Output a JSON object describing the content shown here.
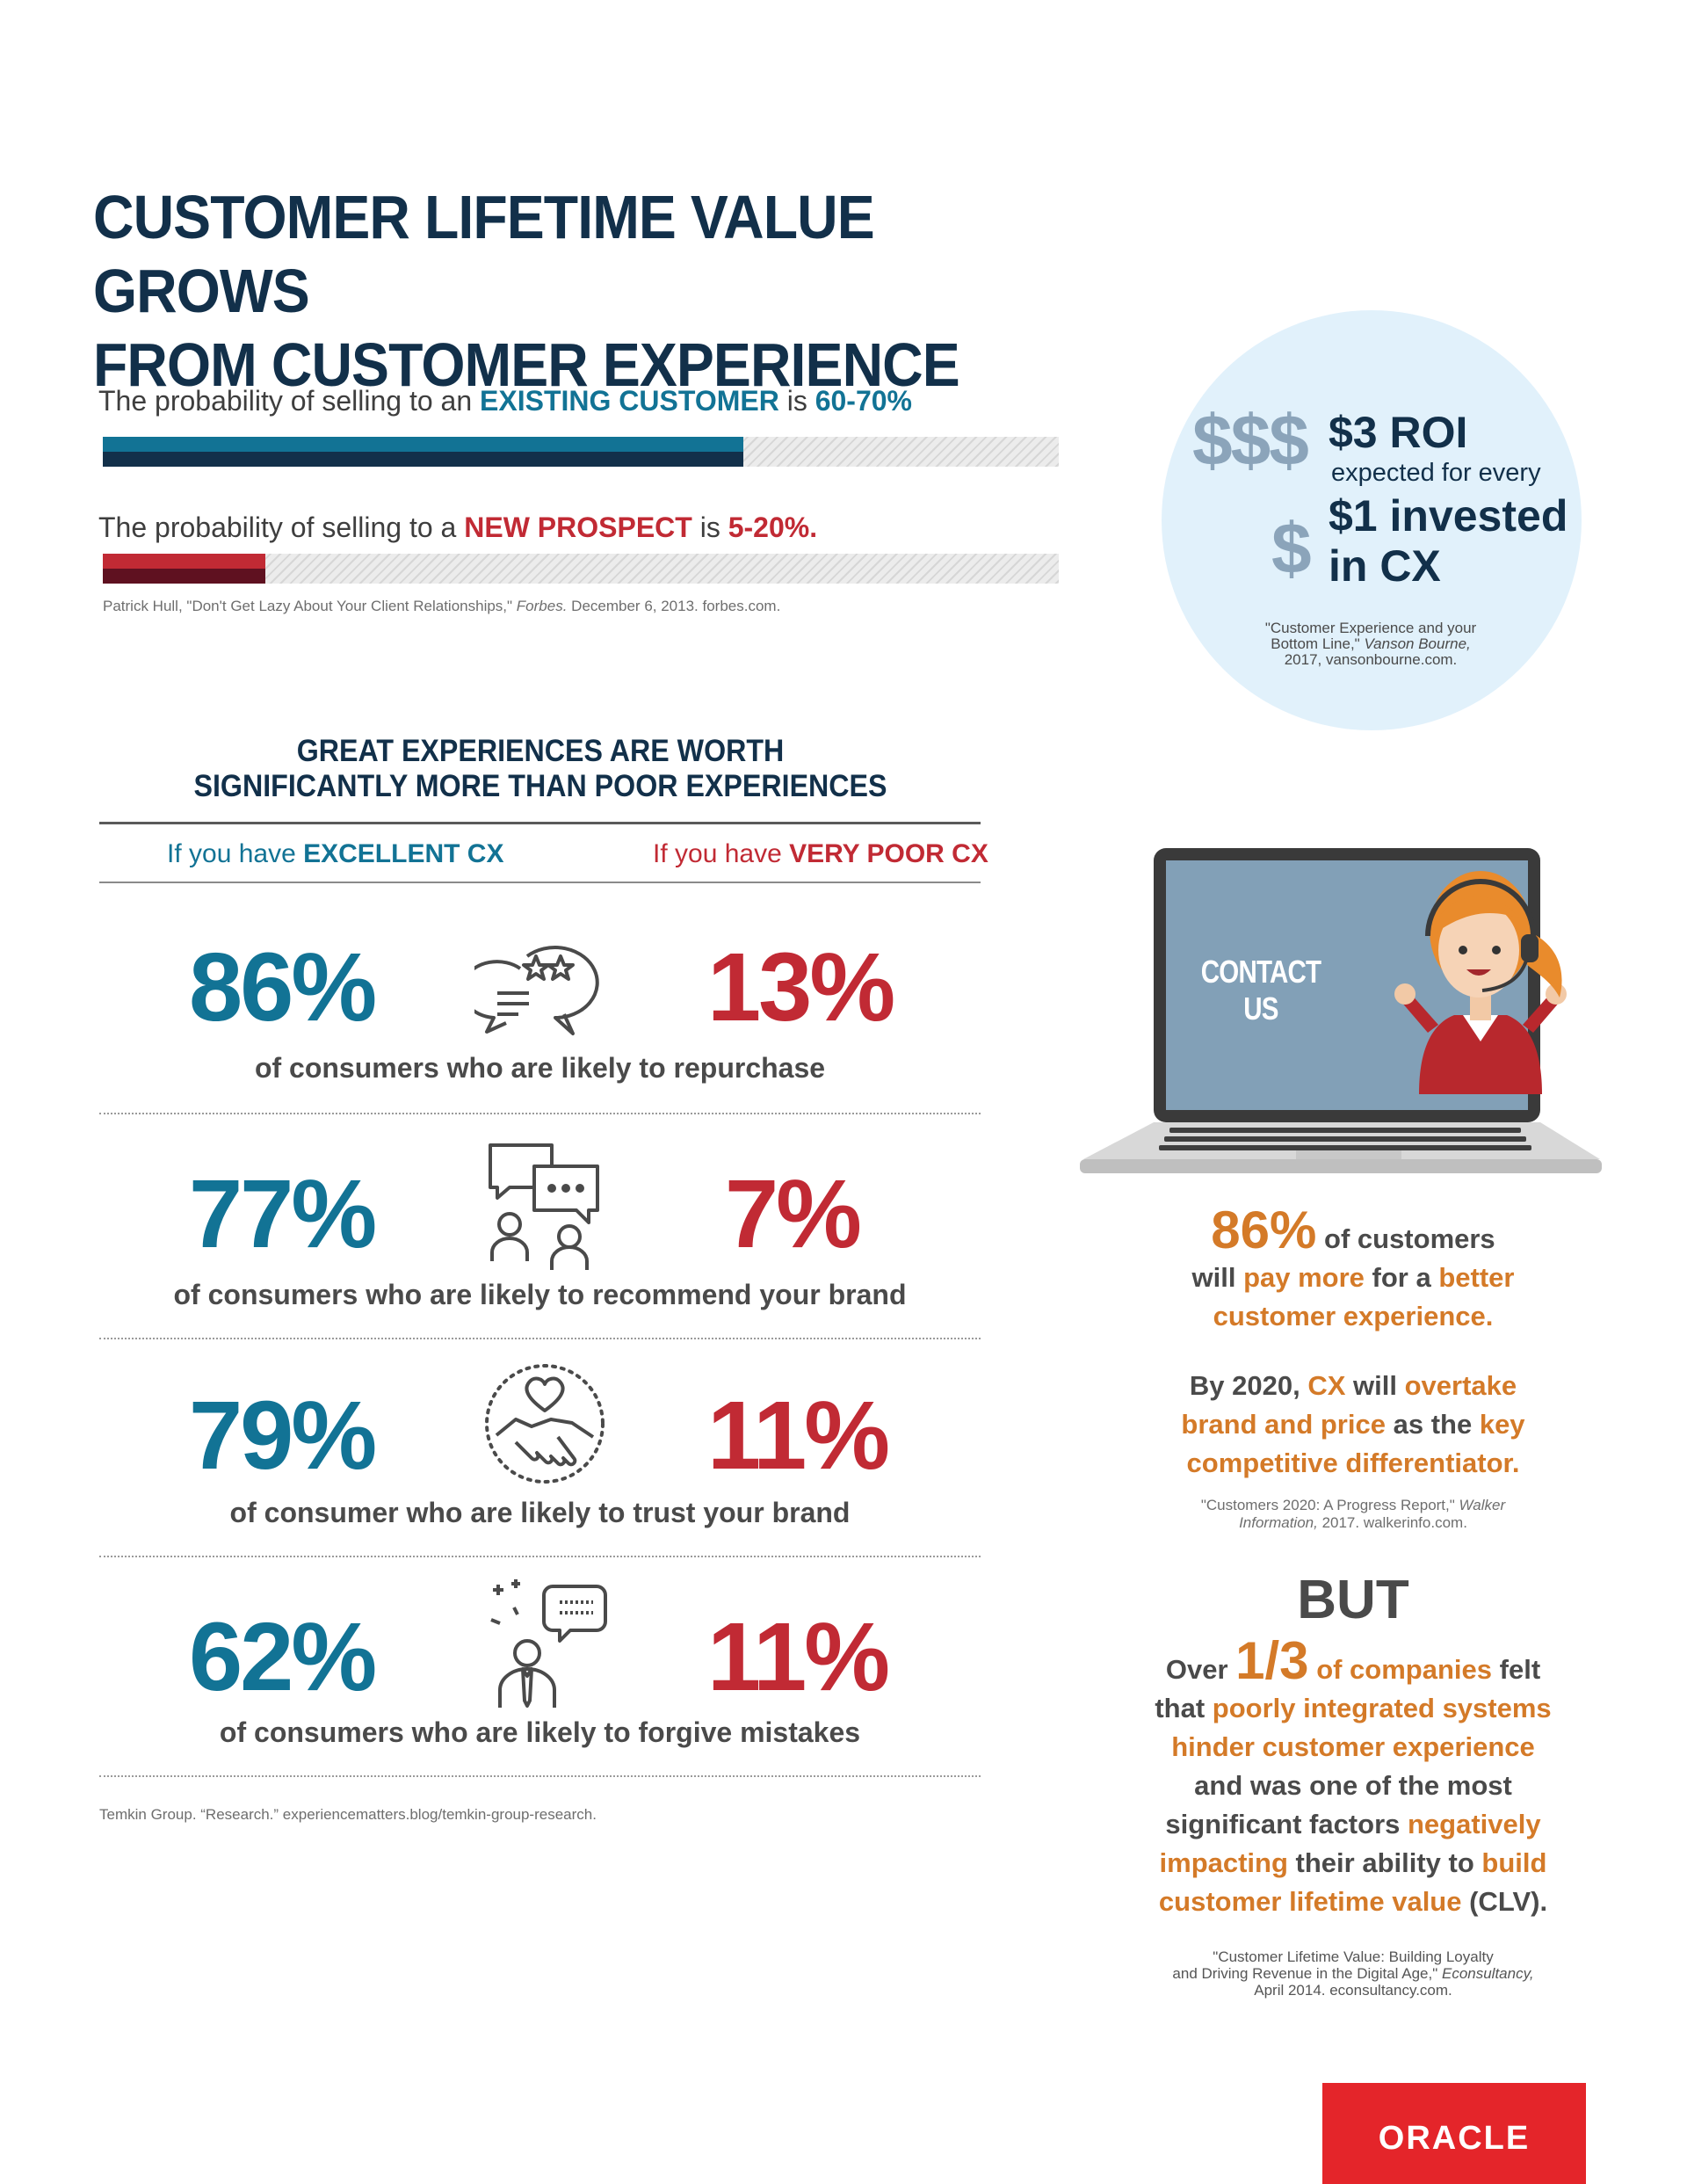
{
  "title": {
    "line1": "CUSTOMER LIFETIME VALUE GROWS",
    "line2": "FROM CUSTOMER EXPERIENCE"
  },
  "probability": {
    "existing": {
      "prefix": "The probability of selling to an",
      "highlight": "EXISTING CUSTOMER",
      "mid": "is",
      "value": "60-70%",
      "bar_fill_fraction": 0.67
    },
    "new": {
      "prefix": "The probability of selling to a",
      "highlight": "NEW PROSPECT",
      "mid": "is",
      "value": "5-20%.",
      "bar_fill_fraction": 0.17
    },
    "citation": {
      "text": "Patrick Hull, \"Don't Get Lazy About Your Client Relationships,\"",
      "italic": "Forbes.",
      "rest": "December 6, 2013. forbes.com."
    }
  },
  "roi": {
    "triple_dollar": "$$$",
    "single_dollar": "$",
    "line1": "$3 ROI",
    "line2": "expected for every",
    "line3": "$1 invested",
    "line4": "in CX",
    "citation_line1": "\"Customer Experience and your",
    "citation_line2a": "Bottom Line,\"",
    "citation_line2b": "Vanson Bourne,",
    "citation_line3": "2017, vansonbourne.com."
  },
  "section": {
    "title_line1": "GREAT EXPERIENCES ARE WORTH",
    "title_line2": "SIGNIFICANTLY MORE THAN POOR EXPERIENCES",
    "excellent_prefix": "If you have",
    "excellent_label": "EXCELLENT CX",
    "poor_prefix": "If you have",
    "poor_label": "VERY POOR CX"
  },
  "stats": [
    {
      "excellent": "86%",
      "poor": "13%",
      "label": "of consumers who are likely to repurchase",
      "icon": "chat-stars-icon"
    },
    {
      "excellent": "77%",
      "poor": "7%",
      "label": "of consumers who are likely to recommend your brand",
      "icon": "conversation-icon"
    },
    {
      "excellent": "79%",
      "poor": "11%",
      "label": "of consumer who are likely to trust your brand",
      "icon": "handshake-heart-icon"
    },
    {
      "excellent": "62%",
      "poor": "11%",
      "label": "of consumers who are likely to forgive mistakes",
      "icon": "person-speech-icon"
    }
  ],
  "stats_citation": "Temkin Group. “Research.” experiencematters.blog/temkin-group-research.",
  "laptop": {
    "screen_button": "CONTACT US"
  },
  "right_column": {
    "stat_value": "86%",
    "stat_a": "of customers",
    "stat_b": "will",
    "stat_c": "pay more",
    "stat_d": "for a",
    "stat_e": "better",
    "stat_f": "customer experience.",
    "p2_a": "By 2020,",
    "p2_b": "CX",
    "p2_c": "will",
    "p2_d": "overtake",
    "p2_e": "brand and price",
    "p2_f": "as the",
    "p2_g": "key",
    "p2_h": "competitive differentiator.",
    "cite2_a": "\"Customers 2020: A Progress Report,\"",
    "cite2_b": "Walker",
    "cite2_c": "Information,",
    "cite2_d": "2017. walkerinfo.com.",
    "but": "BUT",
    "p3_over": "Over",
    "p3_frac": "1/3",
    "p3_companies": "of companies",
    "p3_felt": "felt",
    "p3_that": "that",
    "p3_poorly": "poorly integrated systems",
    "p3_hinder": "hinder customer experience",
    "p3_and": "and was one of the most",
    "p3_sig": "significant factors",
    "p3_neg": "negatively",
    "p3_impacting": "impacting",
    "p3_their": "their ability to",
    "p3_build": "build",
    "p3_clv": "customer lifetime value",
    "p3_clv_abbr": "(CLV).",
    "cite3_a": "\"Customer Lifetime Value: Building Loyalty",
    "cite3_b": "and Driving Revenue in the Digital Age,\"",
    "cite3_c": "Econsultancy,",
    "cite3_d": "April 2014. econsultancy.com."
  },
  "logo": {
    "text": "ORACLE"
  },
  "colors": {
    "navy": "#12304a",
    "teal": "#127395",
    "red": "#c12a34",
    "orange": "#d47a28",
    "circle": "#e1f1fb",
    "oracle_red": "#e4252a"
  }
}
